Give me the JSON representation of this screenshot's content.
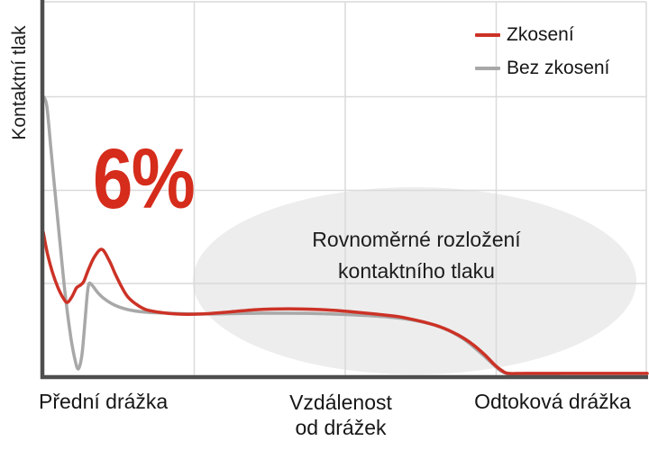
{
  "figure": {
    "y_axis_label": "Kontaktní tlak"
  },
  "annotations": {
    "percent_label": {
      "text": "6%",
      "color": "#d52c1c"
    },
    "ellipse_note": {
      "line1": "Rovnoměrné rozložení",
      "line2": "kontaktního tlaku",
      "fill": "#ededed"
    }
  },
  "colors": {
    "grid": "#dadada",
    "axis": "#4e4e4e",
    "background": "#ffffff"
  },
  "chart_data": {
    "type": "line",
    "title": "",
    "xlabel": "Vzdálenost od drážek",
    "xlabel_lines": [
      "Vzdálenost",
      "od drážek"
    ],
    "ylabel": "Kontaktní tlak",
    "x_range_labels": [
      "Přední drážka",
      "Odtoková drážka"
    ],
    "x_axis_numeric": false,
    "y_axis_numeric": false,
    "grid": true,
    "legend_position": "top-right",
    "annotations": [
      "6%",
      "Rovnoměrné rozložení kontaktního tlaku"
    ],
    "series": [
      {
        "name": "Zkosení",
        "color": "#cc3226",
        "description": "relative contact pressure vs. normalized distance from grooves (0 = front groove, 1 = outflow groove), pressure normalized 0–1",
        "points": [
          [
            0.0,
            0.383
          ],
          [
            0.007,
            0.325
          ],
          [
            0.015,
            0.277
          ],
          [
            0.024,
            0.236
          ],
          [
            0.033,
            0.207
          ],
          [
            0.04,
            0.195
          ],
          [
            0.048,
            0.212
          ],
          [
            0.055,
            0.234
          ],
          [
            0.061,
            0.241
          ],
          [
            0.067,
            0.251
          ],
          [
            0.075,
            0.284
          ],
          [
            0.085,
            0.318
          ],
          [
            0.097,
            0.337
          ],
          [
            0.109,
            0.308
          ],
          [
            0.119,
            0.272
          ],
          [
            0.13,
            0.236
          ],
          [
            0.14,
            0.21
          ],
          [
            0.154,
            0.19
          ],
          [
            0.17,
            0.176
          ],
          [
            0.191,
            0.169
          ],
          [
            0.221,
            0.164
          ],
          [
            0.26,
            0.164
          ],
          [
            0.304,
            0.169
          ],
          [
            0.355,
            0.176
          ],
          [
            0.406,
            0.178
          ],
          [
            0.46,
            0.176
          ],
          [
            0.504,
            0.171
          ],
          [
            0.549,
            0.164
          ],
          [
            0.588,
            0.157
          ],
          [
            0.624,
            0.145
          ],
          [
            0.657,
            0.13
          ],
          [
            0.687,
            0.108
          ],
          [
            0.71,
            0.084
          ],
          [
            0.731,
            0.055
          ],
          [
            0.748,
            0.027
          ],
          [
            0.76,
            0.012
          ],
          [
            0.77,
            0.005
          ],
          [
            0.801,
            0.005
          ],
          [
            0.899,
            0.005
          ],
          [
            1.0,
            0.005
          ]
        ]
      },
      {
        "name": "Bez zkosení",
        "color": "#a8a8a8",
        "description": "relative contact pressure vs. normalized distance from grooves (0 = front groove, 1 = outflow groove), pressure normalized 0–1",
        "points": [
          [
            0.001,
            0.745
          ],
          [
            0.006,
            0.72
          ],
          [
            0.012,
            0.619
          ],
          [
            0.019,
            0.499
          ],
          [
            0.027,
            0.366
          ],
          [
            0.036,
            0.222
          ],
          [
            0.045,
            0.108
          ],
          [
            0.052,
            0.046
          ],
          [
            0.058,
            0.017
          ],
          [
            0.064,
            0.055
          ],
          [
            0.069,
            0.142
          ],
          [
            0.073,
            0.219
          ],
          [
            0.076,
            0.246
          ],
          [
            0.082,
            0.239
          ],
          [
            0.09,
            0.222
          ],
          [
            0.101,
            0.205
          ],
          [
            0.118,
            0.188
          ],
          [
            0.14,
            0.176
          ],
          [
            0.17,
            0.169
          ],
          [
            0.212,
            0.166
          ],
          [
            0.272,
            0.164
          ],
          [
            0.346,
            0.166
          ],
          [
            0.436,
            0.166
          ],
          [
            0.525,
            0.161
          ],
          [
            0.585,
            0.154
          ],
          [
            0.63,
            0.142
          ],
          [
            0.667,
            0.123
          ],
          [
            0.697,
            0.096
          ],
          [
            0.722,
            0.063
          ],
          [
            0.742,
            0.034
          ],
          [
            0.757,
            0.012
          ],
          [
            0.767,
            0.005
          ],
          [
            0.782,
            0.002
          ],
          [
            0.809,
            0.0
          ],
          [
            0.854,
            0.0
          ]
        ]
      }
    ]
  }
}
